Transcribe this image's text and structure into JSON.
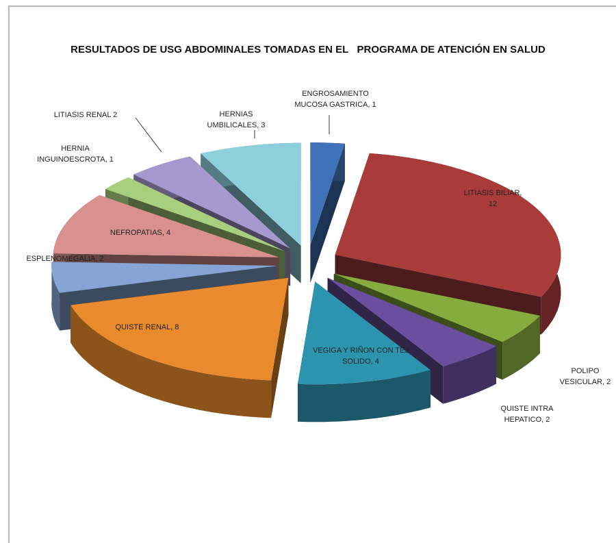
{
  "chart_data": {
    "type": "pie3d",
    "title": "RESULTADOS DE USG ABDOMINALES TOMADAS EN EL   PROGRAMA DE ATENCIÓN EN SALUD",
    "values": [
      1,
      12,
      2,
      2,
      4,
      8,
      2,
      4,
      1,
      2,
      3
    ],
    "value_labels": [
      "ENGROSAMIENTO MUCOSA GASTRICA, 1",
      "LITIASIS BILIAR, 12",
      "POLIPO VESICULAR, 2",
      "QUISTE INTRA HEPATICO, 2",
      "VEGIGA Y RIÑON CON TEJ SOLIDO, 4",
      "QUISTE RENAL, 8",
      "ESPLENOMEGALIA, 2",
      "NEFROPATIAS, 4",
      "HERNIA INGUINOESCROTA, 1",
      "LITIASIS RENAL  2",
      "HERNIAS UMBILICALES, 3"
    ],
    "colors": [
      "#3f72b8",
      "#a93b3b",
      "#86ab3f",
      "#6b4f9e",
      "#2d94b0",
      "#e98b2c",
      "#86a5d6",
      "#d99190",
      "#a8cf7e",
      "#a699cf",
      "#8ecfdc"
    ]
  }
}
